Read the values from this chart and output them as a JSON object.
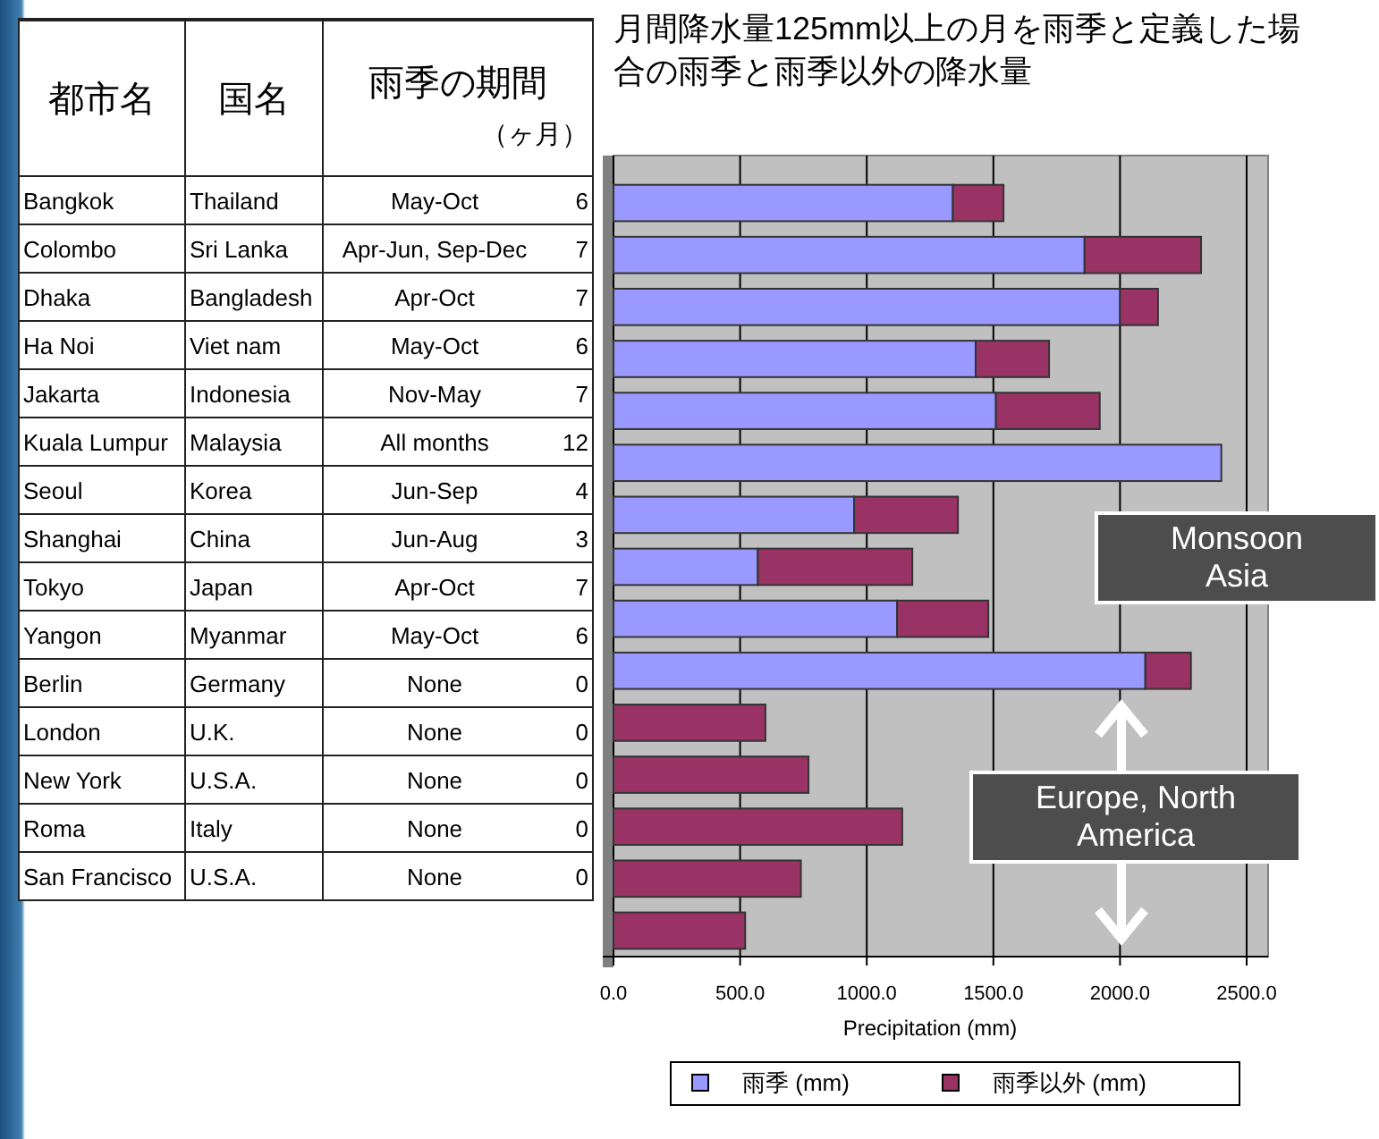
{
  "chart_data": [
    {
      "type": "other",
      "annotations": [
        "都市名",
        "国名",
        "雨季の期間",
        "（ヶ月）",
        "Bangkok",
        "Thailand",
        "May-Oct",
        "6",
        "Colombo",
        "Sri Lanka",
        "Apr-Jun, Sep-Dec",
        "7",
        "Dhaka",
        "Bangladesh",
        "Apr-Oct",
        "7",
        "Ha Noi",
        "Viet nam",
        "May-Oct",
        "6",
        "Jakarta",
        "Indonesia",
        "Nov-May",
        "7",
        "Kuala Lumpur",
        "Malaysia",
        "All months",
        "12",
        "Seoul",
        "Korea",
        "Jun-Sep",
        "4",
        "Shanghai",
        "China",
        "Jun-Aug",
        "3",
        "Tokyo",
        "Japan",
        "Apr-Oct",
        "7",
        "Yangon",
        "Myanmar",
        "May-Oct",
        "6",
        "Berlin",
        "Germany",
        "None",
        "0",
        "London",
        "U.K.",
        "None",
        "0",
        "New York",
        "U.S.A.",
        "None",
        "0",
        "Roma",
        "Italy",
        "None",
        "0",
        "San Francisco",
        "U.S.A.",
        "None",
        "0"
      ]
    },
    {
      "type": "bar",
      "orientation": "horizontal",
      "stacked": true,
      "title": "月間降水量125mm以上の月を雨季と定義した場合の雨季と雨季以外の降水量",
      "xlabel": "Precipitation (mm)",
      "categories": [
        null,
        null,
        null,
        null,
        null,
        null,
        null,
        null,
        null,
        null,
        null,
        null,
        null,
        null,
        null
      ],
      "series": [
        {
          "name": "雨季 (mm)",
          "color": "#9999ff",
          "values": [
            1340,
            1860,
            2000,
            1430,
            1510,
            2400,
            950,
            570,
            1120,
            2100,
            0,
            0,
            0,
            0,
            0
          ]
        },
        {
          "name": "雨季以外 (mm)",
          "color": "#993366",
          "values": [
            200,
            460,
            150,
            290,
            410,
            0,
            410,
            610,
            360,
            180,
            600,
            770,
            1140,
            740,
            520
          ]
        }
      ],
      "xlim": [
        0,
        2500
      ],
      "xticks": [
        {
          "value": 0,
          "label": "0.0"
        },
        {
          "value": 500,
          "label": "500.0"
        },
        {
          "value": 1000,
          "label": "1000.0"
        },
        {
          "value": 1500,
          "label": "1500.0"
        },
        {
          "value": 2000,
          "label": "2000.0"
        },
        {
          "value": 2500,
          "label": "2500.0"
        }
      ],
      "grid": "x",
      "legend": "bottom",
      "annotations": [
        "Monsoon Asia",
        "Europe, North America"
      ]
    }
  ]
}
